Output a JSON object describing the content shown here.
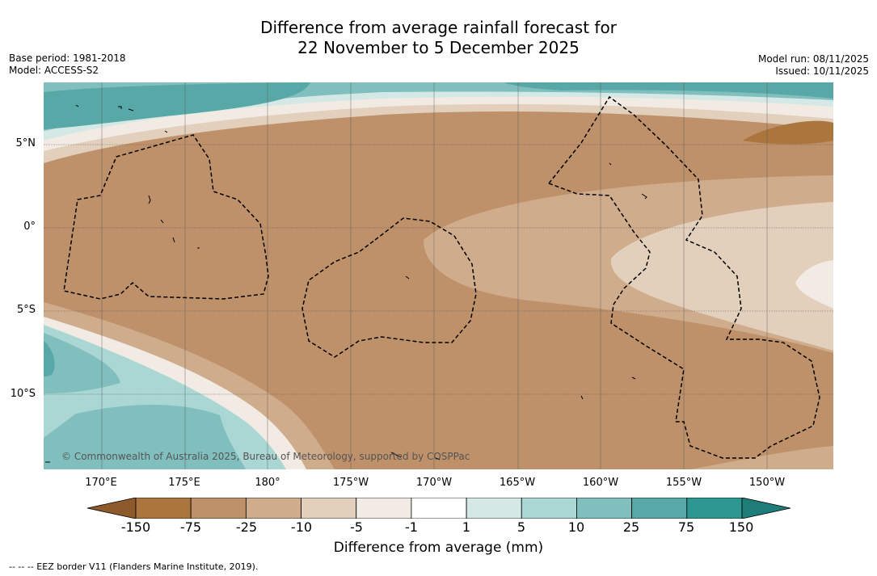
{
  "title_line1": "Difference from average rainfall forecast for",
  "title_line2": "22 November to 5 December 2025",
  "base_period": "Base period: 1981-2018",
  "model": "Model: ACCESS-S2",
  "model_run": "Model run: 08/11/2025",
  "issued": "Issued: 10/11/2025",
  "lat_labels": [
    "5°N",
    "0°",
    "5°S",
    "10°S"
  ],
  "lon_labels": [
    "170°E",
    "175°E",
    "180°",
    "175°W",
    "170°W",
    "165°W",
    "160°W",
    "155°W",
    "150°W"
  ],
  "credit": "© Commonwealth of Australia 2025, Bureau of Meteorology, supported by COSPPac",
  "colorbar": {
    "ticks": [
      "-150",
      "-75",
      "-25",
      "-10",
      "-5",
      "-1",
      "1",
      "5",
      "10",
      "25",
      "75",
      "150"
    ],
    "colors": [
      "#8e5a2c",
      "#ab763e",
      "#be916a",
      "#cfac8c",
      "#e2d0bd",
      "#f1ebe4",
      "#ffffff",
      "#d4e8e6",
      "#aad6d4",
      "#80bfbd",
      "#57a8a7",
      "#2e9792",
      "#1e7d79"
    ],
    "label": "Difference from average (mm)"
  },
  "footnote": "--  --  -- EEZ border V11 (Flanders Marine Institute, 2019)."
}
